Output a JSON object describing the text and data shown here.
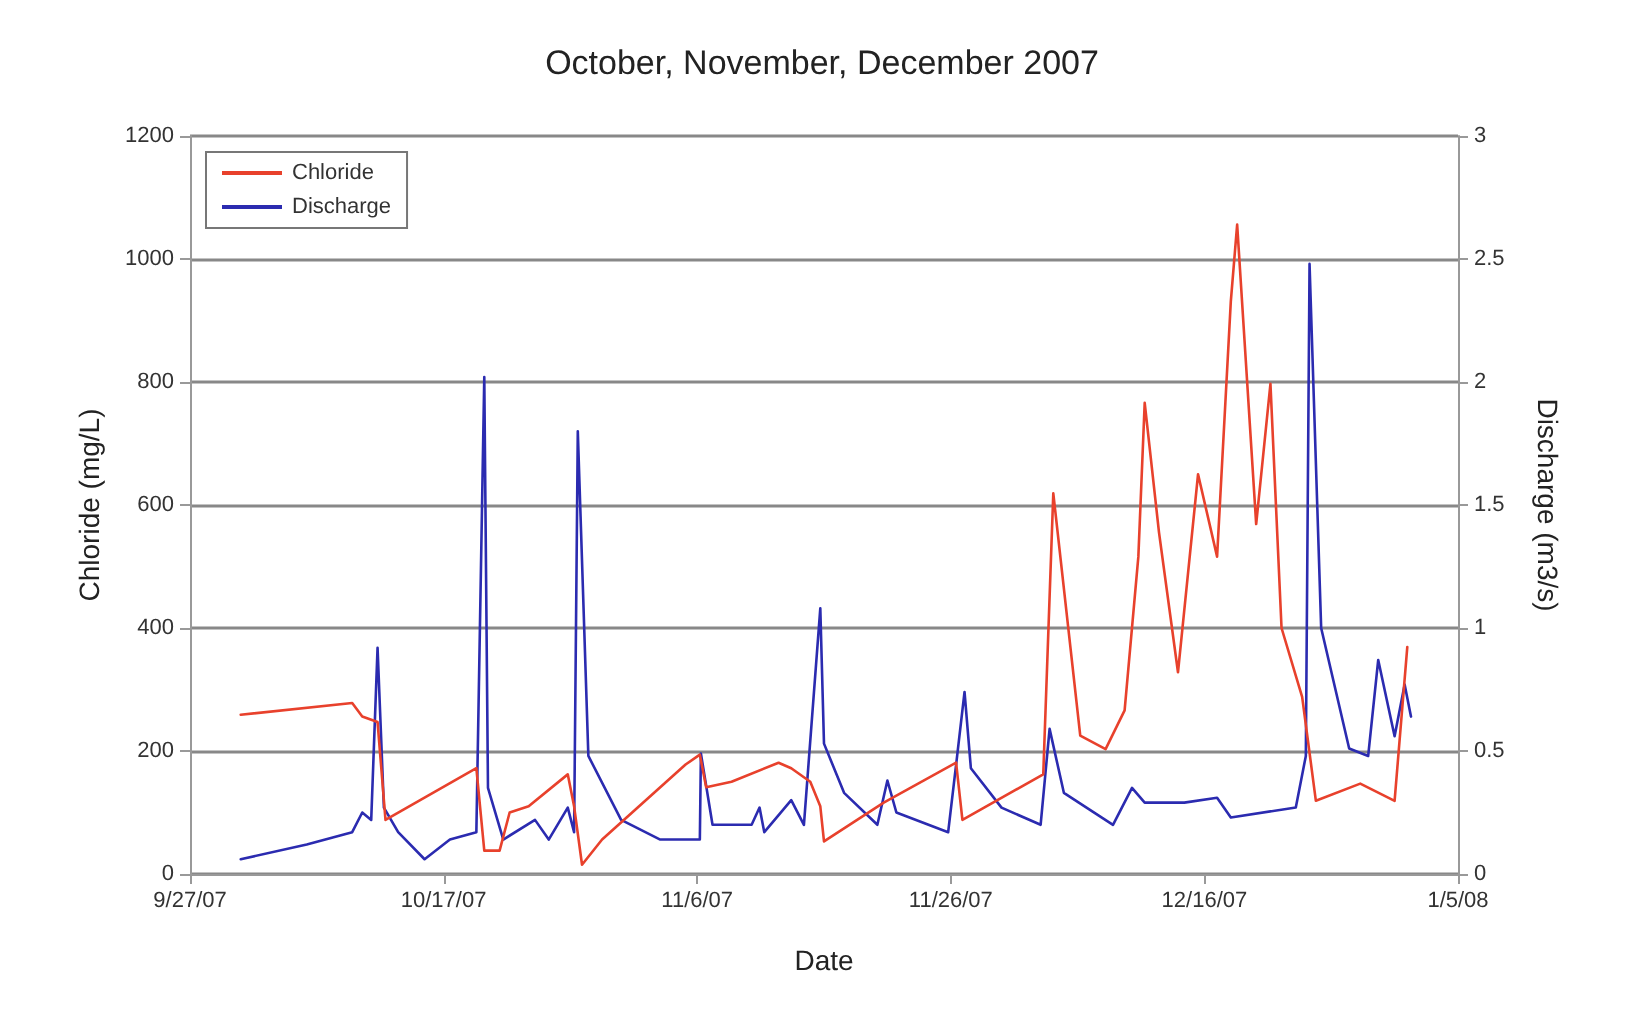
{
  "chart_data": {
    "type": "line",
    "title": "October, November, December 2007",
    "xlabel": "Date",
    "ylabel": "Chloride (mg/L)",
    "y2label": "Discharge (m3/s)",
    "xlim": [
      "2007-09-27",
      "2008-01-05"
    ],
    "xticks": [
      {
        "value": "2007-09-27",
        "label": "9/27/07"
      },
      {
        "value": "2007-10-17",
        "label": "10/17/07"
      },
      {
        "value": "2007-11-06",
        "label": "11/6/07"
      },
      {
        "value": "2007-11-26",
        "label": "11/26/07"
      },
      {
        "value": "2007-12-16",
        "label": "12/16/07"
      },
      {
        "value": "2008-01-05",
        "label": "1/5/08"
      }
    ],
    "ylim": [
      0,
      1200
    ],
    "yticks": [
      0,
      200,
      400,
      600,
      800,
      1000,
      1200
    ],
    "y2lim": [
      0,
      3
    ],
    "y2ticks": [
      0,
      0.5,
      1,
      1.5,
      2,
      2.5,
      3
    ],
    "grid": "y",
    "legend": "top left",
    "marker": "none",
    "line_style": "solid",
    "series": [
      {
        "name": "Chloride",
        "color": "#e8412c",
        "x": [
          "2007-10-01T00:00",
          "2007-10-09T19:00",
          "2007-10-10T14:00",
          "2007-10-11T19:00",
          "2007-10-12T10:00",
          "2007-10-19T14:00",
          "2007-10-20T05:00",
          "2007-10-21T10:00",
          "2007-10-22T05:00",
          "2007-10-23T17:00",
          "2007-10-26T19:00",
          "2007-10-27T07:00",
          "2007-10-27T22:00",
          "2007-10-29T12:00",
          "2007-11-05T02:00",
          "2007-11-06T05:00",
          "2007-11-06T17:00",
          "2007-11-08T17:00",
          "2007-11-12T10:00",
          "2007-11-13T10:00",
          "2007-11-14T22:00",
          "2007-11-15T17:00",
          "2007-11-16T00:00",
          "2007-11-20T17:00",
          "2007-11-26T10:00",
          "2007-11-26T22:00",
          "2007-12-03T07:00",
          "2007-12-04T02:00",
          "2007-12-06T05:00",
          "2007-12-08T05:00",
          "2007-12-09T17:00",
          "2007-12-10T19:00",
          "2007-12-11T07:00",
          "2007-12-12T10:00",
          "2007-12-13T22:00",
          "2007-12-15T12:00",
          "2007-12-17T00:00",
          "2007-12-18T02:00",
          "2007-12-18T14:00",
          "2007-12-20T02:00",
          "2007-12-21T05:00",
          "2007-12-22T02:00",
          "2007-12-23T17:00",
          "2007-12-24T19:00",
          "2007-12-28T07:00",
          "2007-12-31T00:00",
          "2008-01-01T00:00"
        ],
        "values": [
          259,
          278,
          256,
          247,
          88,
          172,
          38,
          38,
          100,
          110,
          162,
          110,
          15,
          56,
          178,
          194,
          141,
          150,
          181,
          172,
          150,
          110,
          53,
          116,
          181,
          88,
          162,
          619,
          225,
          203,
          266,
          516,
          766,
          556,
          328,
          650,
          516,
          931,
          1056,
          569,
          797,
          400,
          288,
          119,
          147,
          119,
          369
        ]
      },
      {
        "name": "Discharge",
        "color": "#2b2bb0",
        "axis": "y2",
        "x": [
          "2007-10-01T00:00",
          "2007-10-06T05:00",
          "2007-10-09T19:00",
          "2007-10-10T14:00",
          "2007-10-11T07:00",
          "2007-10-11T19:00",
          "2007-10-12T07:00",
          "2007-10-13T10:00",
          "2007-10-15T12:00",
          "2007-10-17T12:00",
          "2007-10-19T14:00",
          "2007-10-20T05:00",
          "2007-10-20T12:00",
          "2007-10-21T17:00",
          "2007-10-24T05:00",
          "2007-10-25T07:00",
          "2007-10-26T19:00",
          "2007-10-27T07:00",
          "2007-10-27T14:00",
          "2007-10-28T10:00",
          "2007-10-31T00:00",
          "2007-11-03T02:00",
          "2007-11-06T05:00",
          "2007-11-06T07:00",
          "2007-11-07T05:00",
          "2007-11-10T07:00",
          "2007-11-10T22:00",
          "2007-11-11T07:00",
          "2007-11-13T10:00",
          "2007-11-14T10:00",
          "2007-11-15T17:00",
          "2007-11-16T00:00",
          "2007-11-17T14:00",
          "2007-11-20T05:00",
          "2007-11-21T00:00",
          "2007-11-21T17:00",
          "2007-11-25T19:00",
          "2007-11-26T12:00",
          "2007-11-27T02:00",
          "2007-11-27T14:00",
          "2007-11-30T00:00",
          "2007-12-03T02:00",
          "2007-12-03T19:00",
          "2007-12-04T22:00",
          "2007-12-08T19:00",
          "2007-12-10T07:00",
          "2007-12-11T07:00",
          "2007-12-14T10:00",
          "2007-12-17T00:00",
          "2007-12-18T02:00",
          "2007-12-23T05:00",
          "2007-12-24T00:00",
          "2007-12-24T07:00",
          "2007-12-25T05:00",
          "2007-12-27T10:00",
          "2007-12-28T22:00",
          "2007-12-29T17:00",
          "2007-12-31T00:00",
          "2007-12-31T19:00",
          "2008-01-01T07:00"
        ],
        "values": [
          0.06,
          0.12,
          0.17,
          0.25,
          0.22,
          0.92,
          0.27,
          0.17,
          0.06,
          0.14,
          0.17,
          2.02,
          0.35,
          0.14,
          0.22,
          0.14,
          0.27,
          0.17,
          1.8,
          0.48,
          0.22,
          0.14,
          0.14,
          0.49,
          0.2,
          0.2,
          0.27,
          0.17,
          0.3,
          0.2,
          1.08,
          0.53,
          0.33,
          0.2,
          0.38,
          0.25,
          0.17,
          0.48,
          0.74,
          0.43,
          0.27,
          0.2,
          0.59,
          0.33,
          0.2,
          0.35,
          0.29,
          0.29,
          0.31,
          0.23,
          0.27,
          0.48,
          2.48,
          1.0,
          0.51,
          0.48,
          0.87,
          0.56,
          0.77,
          0.64
        ]
      }
    ]
  }
}
